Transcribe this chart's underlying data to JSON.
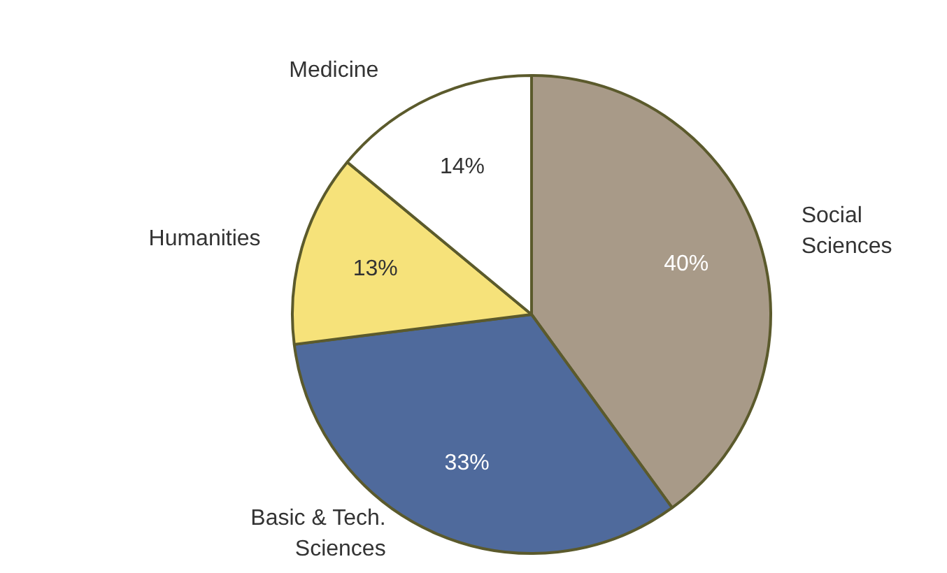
{
  "chart_data": {
    "type": "pie",
    "categories": [
      "Social Sciences",
      "Basic & Tech. Sciences",
      "Humanities",
      "Medicine"
    ],
    "values": [
      40,
      33,
      13,
      14
    ],
    "colors": [
      "#a89a88",
      "#4f6a9c",
      "#f6e27a",
      "#ffffff"
    ],
    "value_labels": [
      "40%",
      "33%",
      "13%",
      "14%"
    ],
    "legend": false
  }
}
